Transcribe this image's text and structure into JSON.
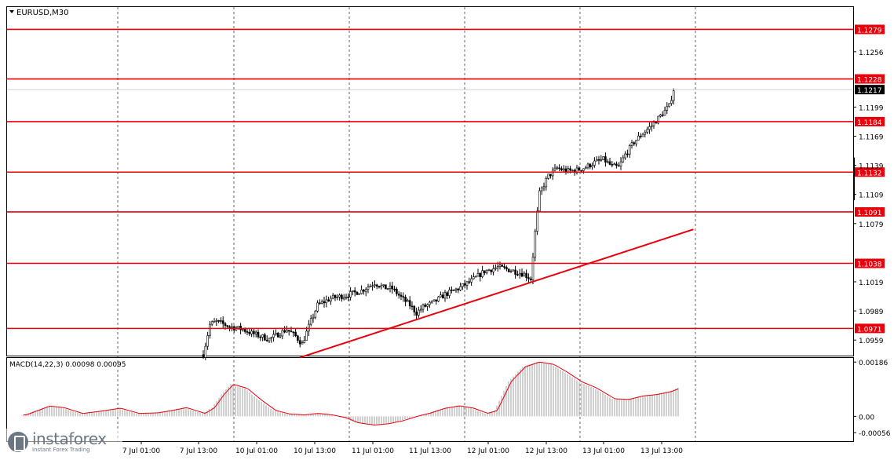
{
  "chart_data": [
    {
      "type": "candlestick",
      "symbol_label": "EURUSD,M30",
      "ylim": [
        1.0943,
        1.1302
      ],
      "y_ticks": [
        "1.1279",
        "1.1256",
        "1.1228",
        "1.1217",
        "1.1199",
        "1.1184",
        "1.1169",
        "1.1139",
        "1.1132",
        "1.1109",
        "1.1091",
        "1.1079",
        "1.1038",
        "1.1019",
        "1.0989",
        "1.0971",
        "1.0959"
      ],
      "current_price": "1.1217",
      "levels": [
        {
          "label": "1.1279",
          "value": 1.1279
        },
        {
          "label": "1.1228",
          "value": 1.1228
        },
        {
          "label": "1.1184",
          "value": 1.1184
        },
        {
          "label": "1.1132",
          "value": 1.1132
        },
        {
          "label": "1.1091",
          "value": 1.1091
        },
        {
          "label": "1.1038",
          "value": 1.1038
        },
        {
          "label": "1.0971",
          "value": 1.0971
        }
      ],
      "trendline": {
        "from": {
          "bar": 44,
          "price": 1.0941
        },
        "to": {
          "bar": 223,
          "price": 1.1073
        }
      },
      "x_ticks": [
        "7 Jul 01:00",
        "7 Jul 13:00",
        "10 Jul 01:00",
        "10 Jul 13:00",
        "11 Jul 01:00",
        "11 Jul 13:00",
        "12 Jul 01:00",
        "12 Jul 13:00",
        "13 Jul 01:00",
        "13 Jul 13:00"
      ],
      "price_path": [
        [
          0,
          1.0944
        ],
        [
          3,
          1.0975
        ],
        [
          6,
          1.0978
        ],
        [
          12,
          1.0973
        ],
        [
          18,
          1.097
        ],
        [
          22,
          1.0966
        ],
        [
          26,
          1.0963
        ],
        [
          30,
          1.096
        ],
        [
          34,
          1.0965
        ],
        [
          38,
          1.097
        ],
        [
          42,
          1.0963
        ],
        [
          45,
          1.0955
        ],
        [
          48,
          1.0973
        ],
        [
          52,
          1.0995
        ],
        [
          58,
          1.1002
        ],
        [
          65,
          1.1005
        ],
        [
          72,
          1.101
        ],
        [
          78,
          1.1018
        ],
        [
          82,
          1.1013
        ],
        [
          86,
          1.1012
        ],
        [
          90,
          1.1003
        ],
        [
          94,
          1.0995
        ],
        [
          97,
          1.0987
        ],
        [
          100,
          1.0993
        ],
        [
          105,
          1.0998
        ],
        [
          110,
          1.1006
        ],
        [
          116,
          1.1012
        ],
        [
          122,
          1.102
        ],
        [
          128,
          1.103
        ],
        [
          134,
          1.1034
        ],
        [
          140,
          1.1031
        ],
        [
          146,
          1.1027
        ],
        [
          149,
          1.1022
        ],
        [
          151,
          1.107
        ],
        [
          153,
          1.111
        ],
        [
          157,
          1.1128
        ],
        [
          161,
          1.1136
        ],
        [
          166,
          1.1133
        ],
        [
          170,
          1.1134
        ],
        [
          174,
          1.1137
        ],
        [
          178,
          1.1142
        ],
        [
          182,
          1.1145
        ],
        [
          186,
          1.1138
        ],
        [
          189,
          1.1137
        ],
        [
          192,
          1.115
        ],
        [
          196,
          1.1163
        ],
        [
          200,
          1.1172
        ],
        [
          204,
          1.118
        ],
        [
          208,
          1.119
        ],
        [
          212,
          1.12
        ],
        [
          214,
          1.1217
        ]
      ]
    },
    {
      "type": "histogram",
      "indicator_label": "MACD(14,22,3) 0.00098 0.00095",
      "ylim": [
        -0.00085,
        0.002
      ],
      "y_ticks": [
        "0.00186",
        "0.00",
        "-0.00056"
      ],
      "macd_path": [
        [
          0,
          5e-05
        ],
        [
          10,
          0.00035
        ],
        [
          16,
          0.0003
        ],
        [
          24,
          0.0001
        ],
        [
          32,
          0.00018
        ],
        [
          40,
          0.00028
        ],
        [
          48,
          0.0001
        ],
        [
          56,
          0.00012
        ],
        [
          62,
          0.0002
        ],
        [
          68,
          0.0003
        ],
        [
          76,
          0.0001
        ],
        [
          80,
          0.0003
        ],
        [
          84,
          0.00075
        ],
        [
          88,
          0.0011
        ],
        [
          94,
          0.00095
        ],
        [
          100,
          0.00055
        ],
        [
          106,
          0.0002
        ],
        [
          112,
          8e-05
        ],
        [
          118,
          5e-05
        ],
        [
          124,
          0.0001
        ],
        [
          130,
          5e-05
        ],
        [
          136,
          -5e-05
        ],
        [
          141,
          -0.00022
        ],
        [
          148,
          -0.0003
        ],
        [
          154,
          -0.00025
        ],
        [
          160,
          -0.00015
        ],
        [
          166,
          0.0
        ],
        [
          172,
          0.00012
        ],
        [
          178,
          0.00028
        ],
        [
          184,
          0.00036
        ],
        [
          190,
          0.00028
        ],
        [
          196,
          0.0001
        ],
        [
          200,
          0.0002
        ],
        [
          206,
          0.0012
        ],
        [
          212,
          0.0017
        ],
        [
          218,
          0.00186
        ],
        [
          224,
          0.00178
        ],
        [
          230,
          0.0015
        ],
        [
          236,
          0.00118
        ],
        [
          242,
          0.00098
        ],
        [
          250,
          0.0006
        ],
        [
          256,
          0.00058
        ],
        [
          262,
          0.0007
        ],
        [
          268,
          0.00075
        ],
        [
          274,
          0.00085
        ],
        [
          278,
          0.00098
        ]
      ]
    }
  ],
  "watermark": {
    "name": "instaforex",
    "tagline": "Instant Forex Trading"
  },
  "colors": {
    "level": "#e8000b",
    "trendline": "#e8000b",
    "candle": "#000000",
    "grid": "#000000",
    "macd_signal": "#e8000b",
    "histogram": "#c4c4c4"
  }
}
